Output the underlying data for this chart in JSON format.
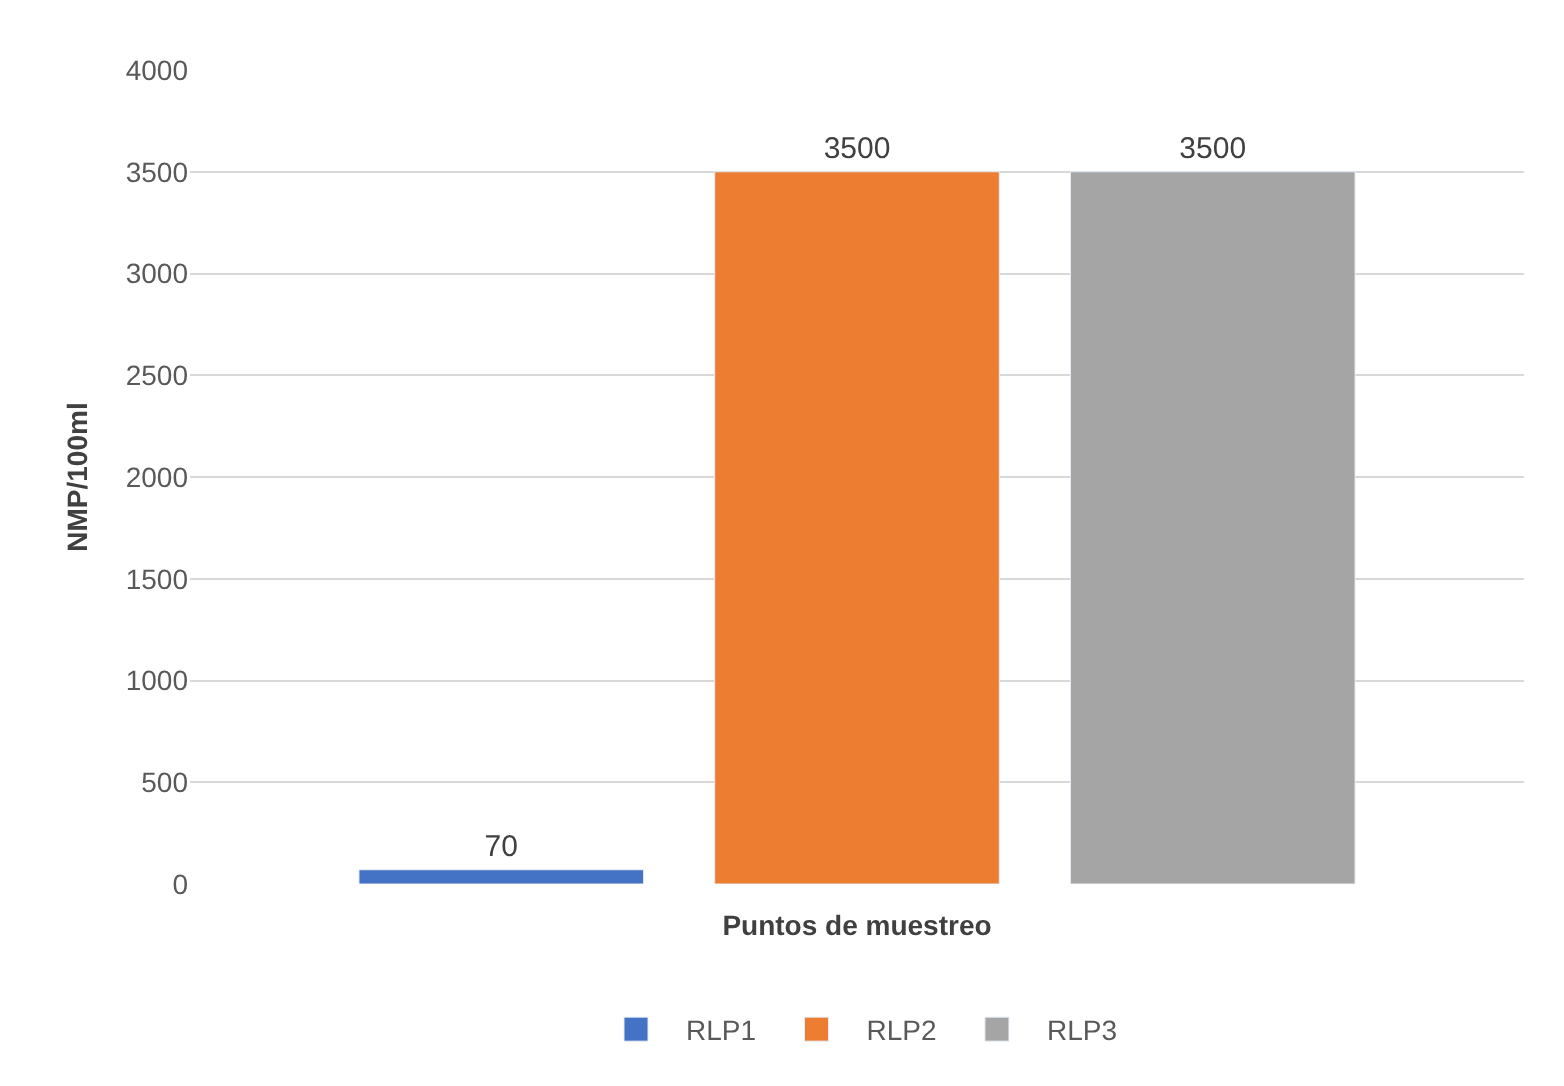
{
  "chart_data": {
    "type": "bar",
    "xlabel": "Puntos de muestreo",
    "ylabel": "NMP/100ml",
    "categories": [
      null
    ],
    "series": [
      {
        "name": "RLP1",
        "color": "#4472c4",
        "values": [
          70
        ]
      },
      {
        "name": "RLP2",
        "color": "#ed7d31",
        "values": [
          3500
        ]
      },
      {
        "name": "RLP3",
        "color": "#a5a5a5",
        "values": [
          3500
        ]
      }
    ],
    "ylim": [
      0,
      4000
    ],
    "yticks": [
      0,
      500,
      1000,
      1500,
      2000,
      2500,
      3000,
      3500,
      4000
    ],
    "grid": "y",
    "legend": "bottom",
    "data_labels": true
  }
}
